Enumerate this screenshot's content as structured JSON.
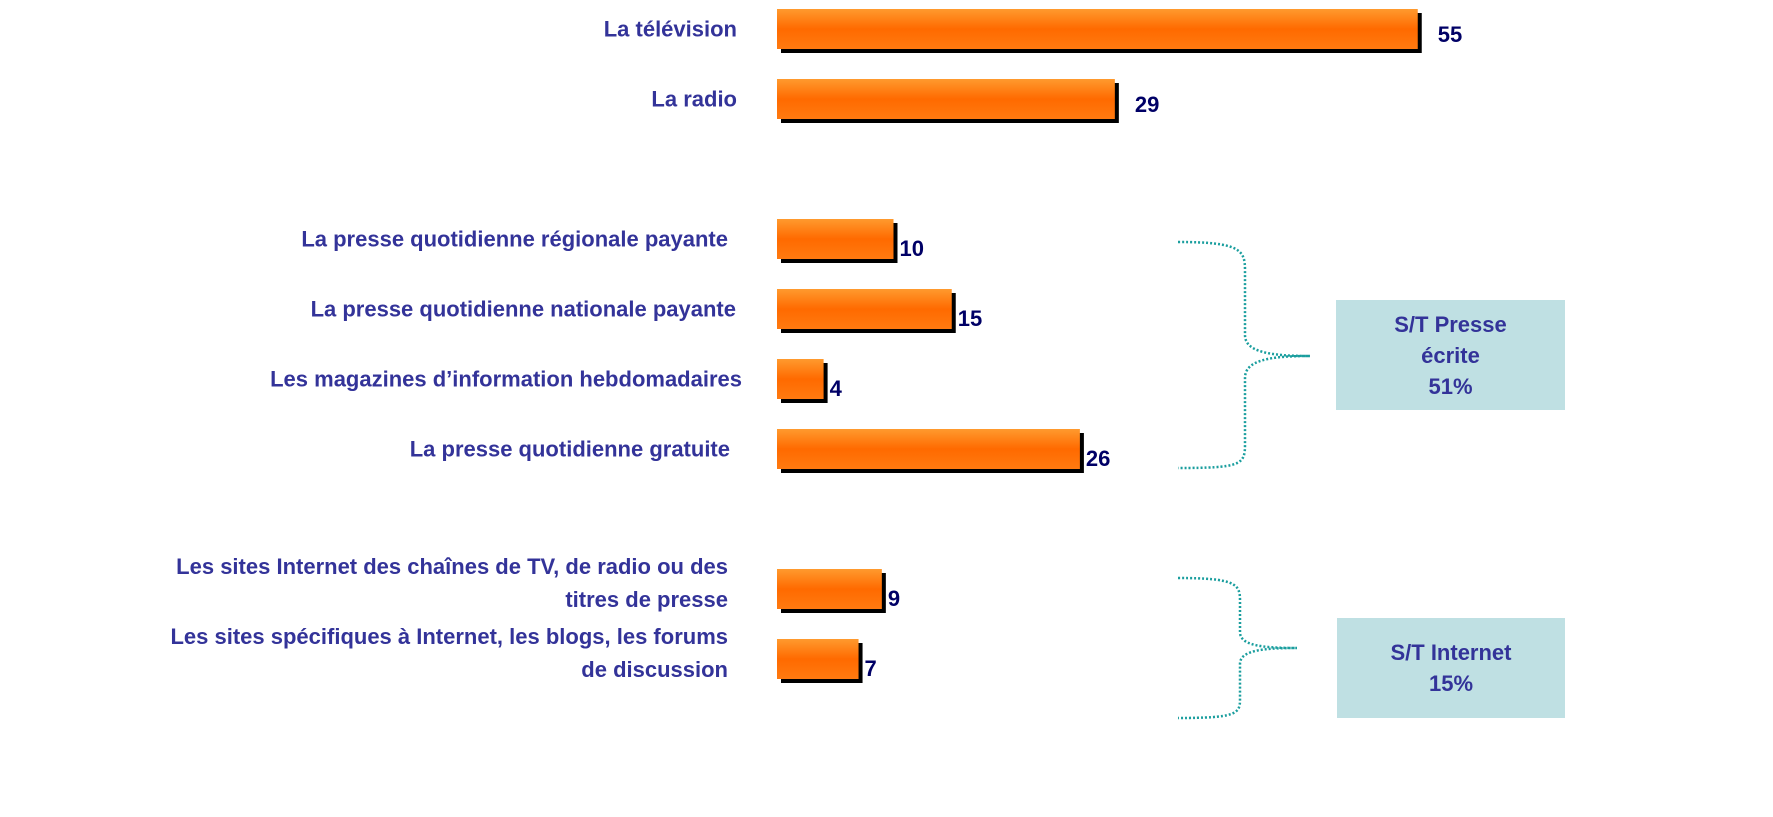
{
  "chart_data": {
    "type": "bar",
    "orientation": "horizontal",
    "categories": [
      "La télévision",
      "La radio",
      "La presse quotidienne régionale payante",
      "La  presse quotidienne nationale payante",
      "Les magazines d’information hebdomadaires",
      "La presse quotidienne gratuite",
      "Les sites Internet des chaînes de TV, de radio ou des\ntitres de presse",
      "Les sites spécifiques à Internet, les blogs, les forums\nde discussion"
    ],
    "values": [
      55,
      29,
      10,
      15,
      4,
      26,
      9,
      7
    ],
    "color": "#ff6a00",
    "annotations": [
      {
        "text": "S/T Presse\nécrite\n51%"
      },
      {
        "text": "S/T Internet\n15%"
      }
    ]
  }
}
